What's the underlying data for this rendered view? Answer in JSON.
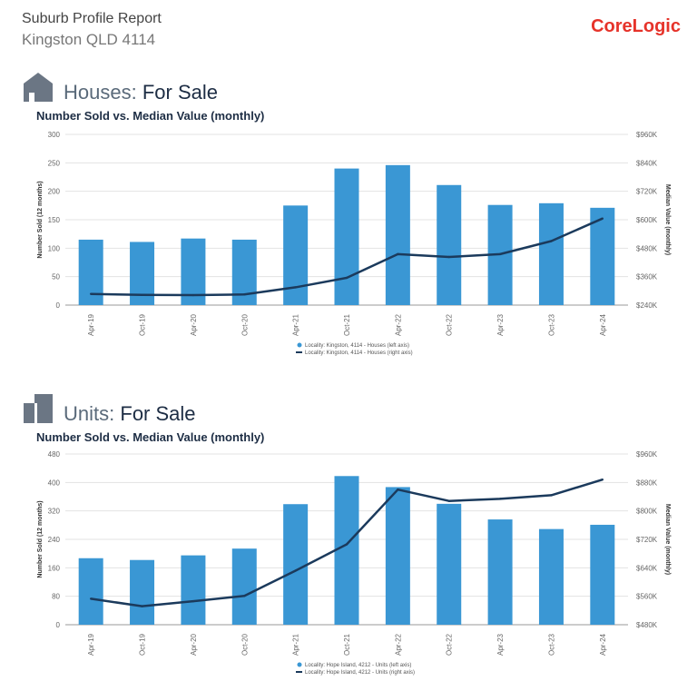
{
  "header": {
    "title": "Suburb Profile Report",
    "subtitle": "Kingston QLD 4114",
    "brand": "CoreLogic"
  },
  "sections": [
    {
      "icon": "house-icon",
      "label_light": "Houses:",
      "label_bold": "For Sale",
      "chart_title": "Number Sold vs. Median Value (monthly)"
    },
    {
      "icon": "unit-building-icon",
      "label_light": "Units:",
      "label_bold": "For Sale",
      "chart_title": "Number Sold vs. Median Value (monthly)"
    }
  ],
  "colors": {
    "bar": "#3a97d4",
    "line": "#1b3a5c",
    "brand": "#e6332a"
  },
  "chart_data": [
    {
      "type": "bar",
      "categories": [
        "Apr-19",
        "Oct-19",
        "Apr-20",
        "Oct-20",
        "Apr-21",
        "Oct-21",
        "Apr-22",
        "Oct-22",
        "Apr-23",
        "Oct-23",
        "Apr-24"
      ],
      "series": [
        {
          "name": "Locality: Kingston, 4114 - Houses (left axis)",
          "type": "bar",
          "axis": "left",
          "values": [
            115,
            111,
            117,
            115,
            175,
            240,
            246,
            211,
            176,
            179,
            171
          ]
        },
        {
          "name": "Locality: Kingston, 4114 - Houses (right axis)",
          "type": "line",
          "axis": "right",
          "values": [
            287000,
            283000,
            282000,
            285000,
            315000,
            355000,
            455000,
            443000,
            455000,
            510000,
            605000
          ]
        }
      ],
      "ylabel": "Number Sold (12 months)",
      "y2label": "Median Value (monthly)",
      "ylim": [
        0,
        300
      ],
      "yticks": [
        "0",
        "50",
        "100",
        "150",
        "200",
        "250",
        "300"
      ],
      "y2lim": [
        240000,
        960000
      ],
      "y2ticks": [
        "$240K",
        "$360K",
        "$480K",
        "$600K",
        "$720K",
        "$840K",
        "$960K"
      ]
    },
    {
      "type": "bar",
      "categories": [
        "Apr-19",
        "Oct-19",
        "Apr-20",
        "Oct-20",
        "Apr-21",
        "Oct-21",
        "Apr-22",
        "Oct-22",
        "Apr-23",
        "Oct-23",
        "Apr-24"
      ],
      "series": [
        {
          "name": "Locality: Hope Island, 4212 - Units (left axis)",
          "type": "bar",
          "axis": "left",
          "values": [
            187,
            182,
            195,
            214,
            339,
            418,
            387,
            340,
            296,
            269,
            281
          ]
        },
        {
          "name": "Locality: Hope Island, 4212 - Units (right axis)",
          "type": "line",
          "axis": "right",
          "values": [
            553000,
            532000,
            546000,
            561000,
            632000,
            706000,
            860000,
            828000,
            834000,
            844000,
            888000
          ]
        }
      ],
      "ylabel": "Number Sold (12 months)",
      "y2label": "Median Value (monthly)",
      "ylim": [
        0,
        480
      ],
      "yticks": [
        "0",
        "80",
        "160",
        "240",
        "320",
        "400",
        "480"
      ],
      "y2lim": [
        480000,
        960000
      ],
      "y2ticks": [
        "$480K",
        "$560K",
        "$640K",
        "$720K",
        "$800K",
        "$880K",
        "$960K"
      ]
    }
  ]
}
